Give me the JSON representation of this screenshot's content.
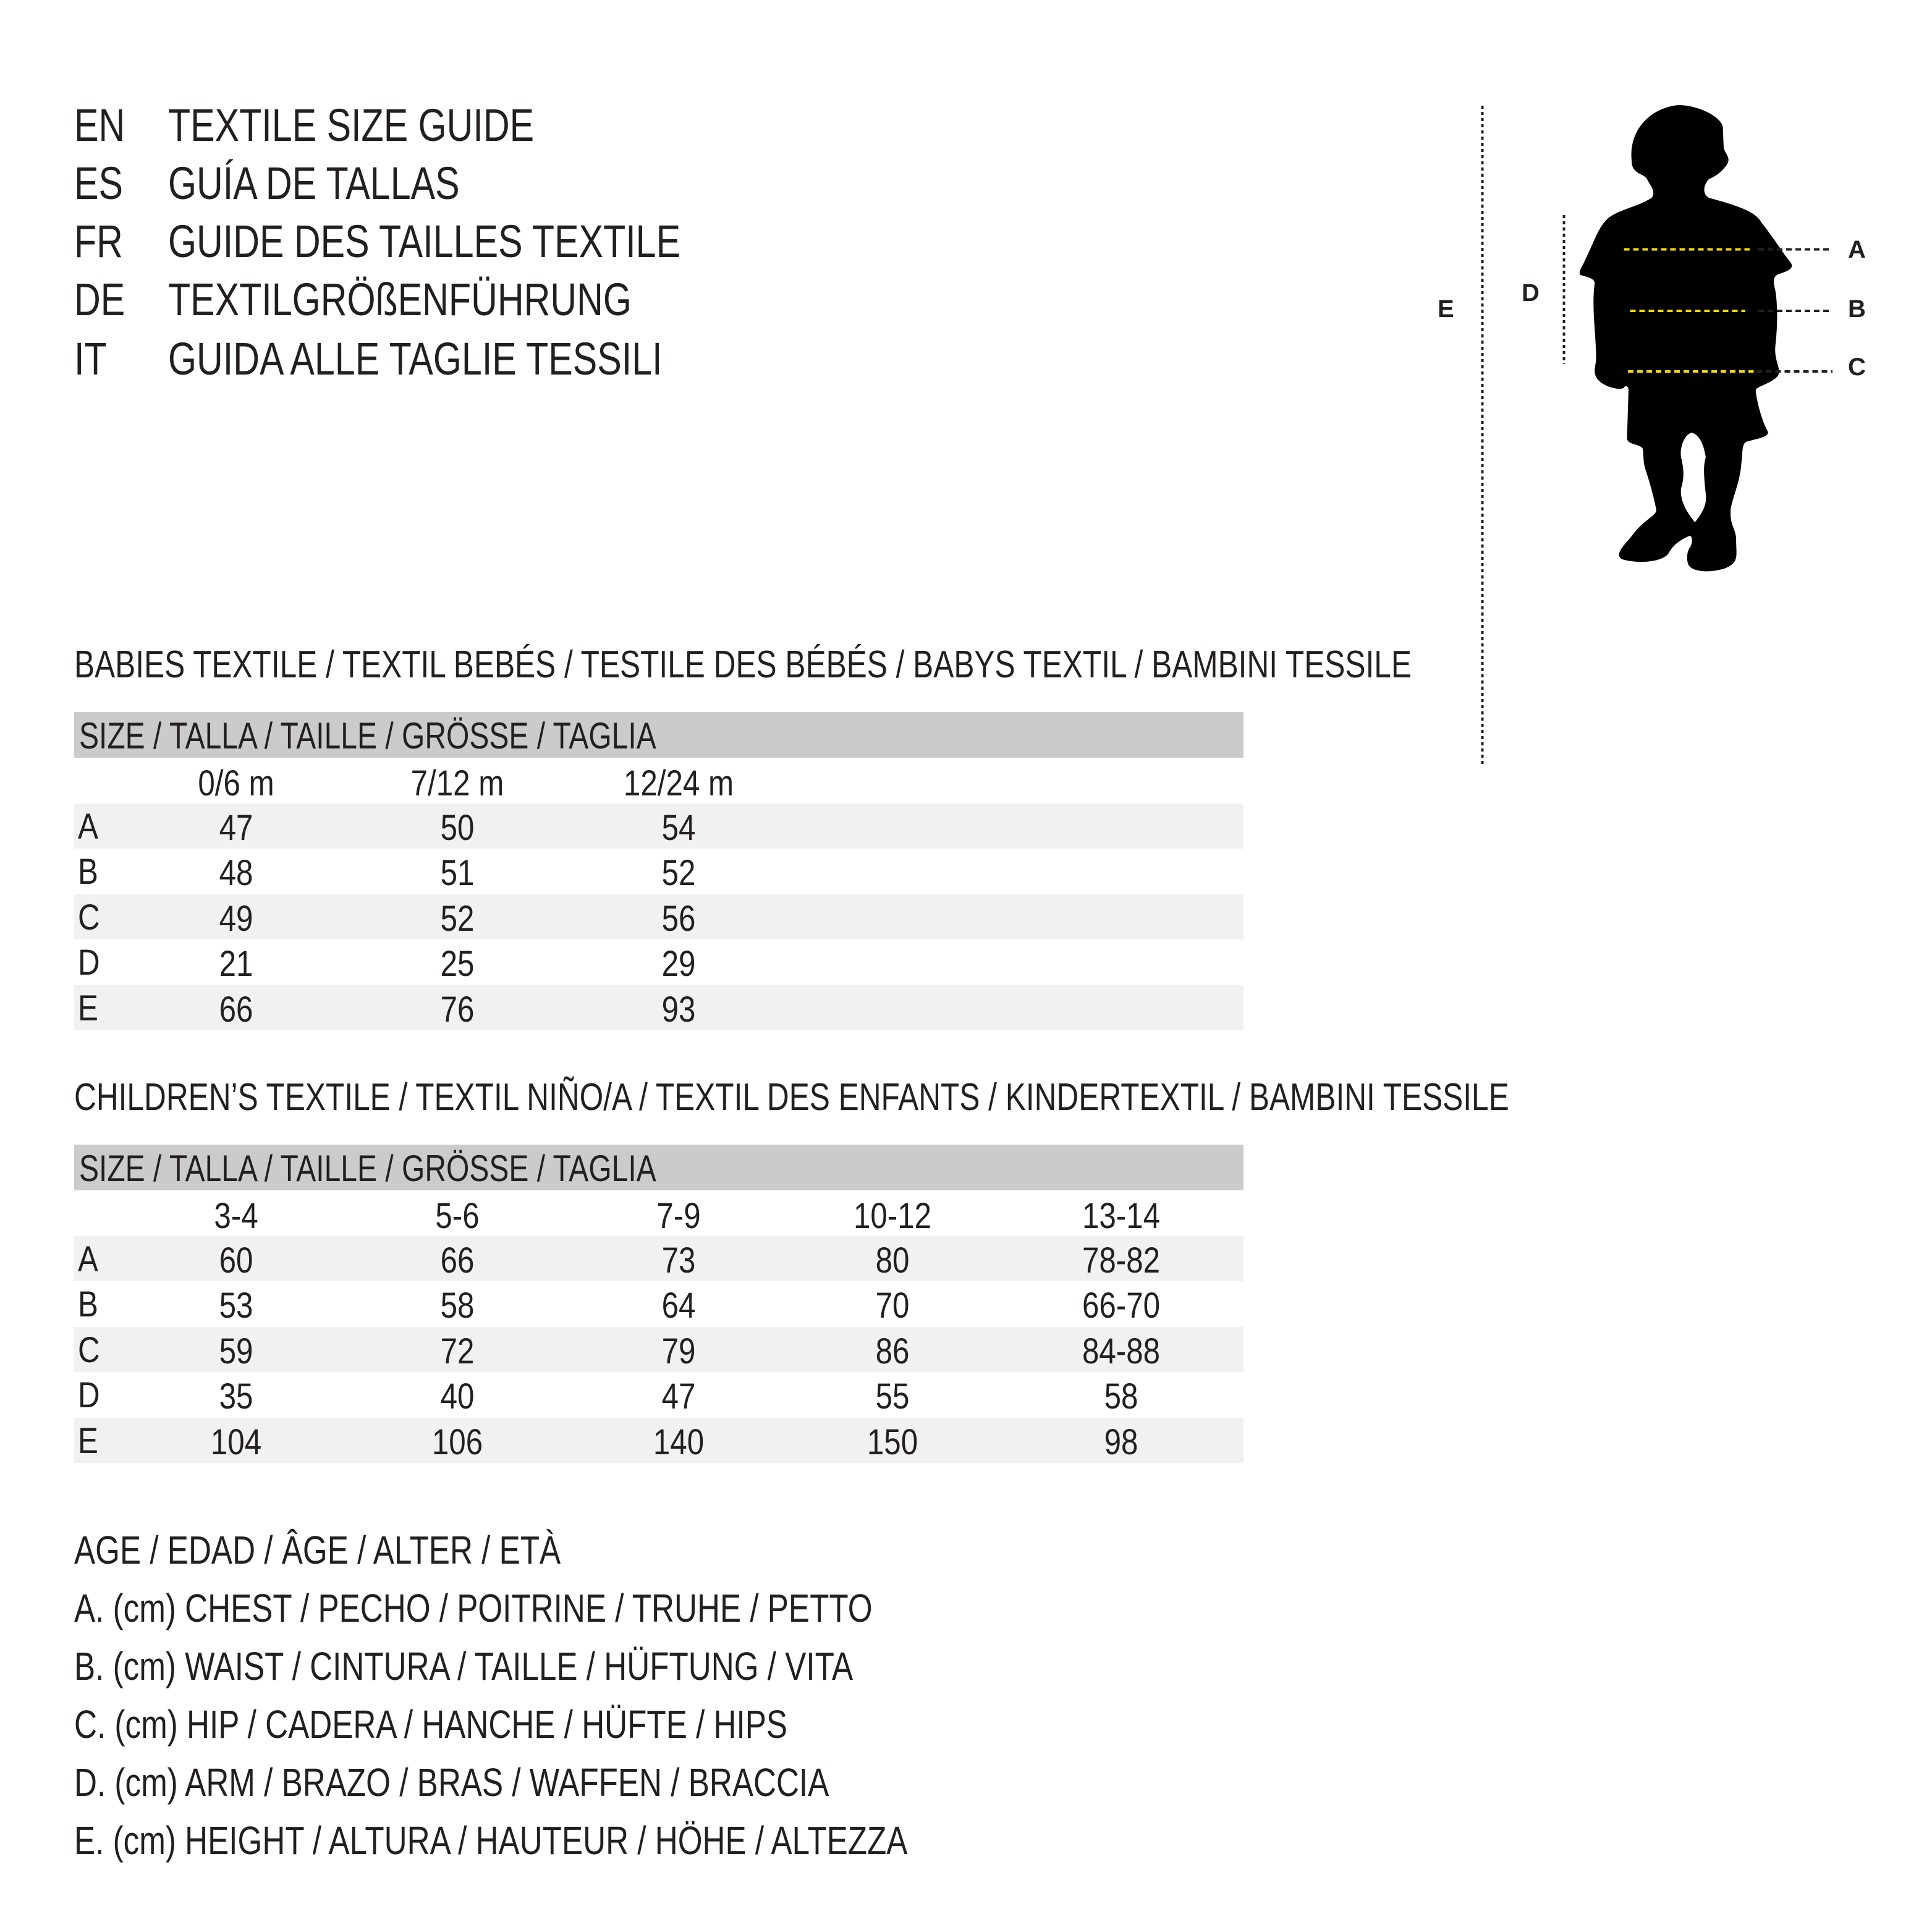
{
  "titles": [
    {
      "code": "EN",
      "text": "TEXTILE SIZE GUIDE"
    },
    {
      "code": "ES",
      "text": "GUÍA DE TALLAS"
    },
    {
      "code": "FR",
      "text": "GUIDE DES TAILLES TEXTILE"
    },
    {
      "code": "DE",
      "text": "TEXTILGRÖßENFÜHRUNG"
    },
    {
      "code": "IT",
      "text": "GUIDA ALLE TAGLIE TESSILI"
    }
  ],
  "figure": {
    "labels": {
      "A": "A",
      "B": "B",
      "C": "C",
      "D": "D",
      "E": "E"
    },
    "measure_line_color": "#f5d90a",
    "silhouette_color": "#000000"
  },
  "babies": {
    "heading": "BABIES TEXTILE / TEXTIL BEBÉS / TESTILE DES BÉBÉS / BABYS TEXTIL / BAMBINI TESSILE",
    "size_header": "SIZE / TALLA / TAILLE / GRÖSSE / TAGLIA",
    "sizes": [
      "0/6 m",
      "7/12 m",
      "12/24 m"
    ],
    "rows": [
      {
        "label": "A",
        "values": [
          "47",
          "50",
          "54"
        ]
      },
      {
        "label": "B",
        "values": [
          "48",
          "51",
          "52"
        ]
      },
      {
        "label": "C",
        "values": [
          "49",
          "52",
          "56"
        ]
      },
      {
        "label": "D",
        "values": [
          "21",
          "25",
          "29"
        ]
      },
      {
        "label": "E",
        "values": [
          "66",
          "76",
          "93"
        ]
      }
    ]
  },
  "children": {
    "heading": "CHILDREN’S TEXTILE / TEXTIL NIÑO/A / TEXTIL DES ENFANTS / KINDERTEXTIL / BAMBINI TESSILE",
    "size_header": "SIZE / TALLA / TAILLE / GRÖSSE / TAGLIA",
    "sizes": [
      "3-4",
      "5-6",
      "7-9",
      "10-12",
      "13-14"
    ],
    "rows": [
      {
        "label": "A",
        "values": [
          "60",
          "66",
          "73",
          "80",
          "78-82"
        ]
      },
      {
        "label": "B",
        "values": [
          "53",
          "58",
          "64",
          "70",
          "66-70"
        ]
      },
      {
        "label": "C",
        "values": [
          "59",
          "72",
          "79",
          "86",
          "84-88"
        ]
      },
      {
        "label": "D",
        "values": [
          "35",
          "40",
          "47",
          "55",
          "58"
        ]
      },
      {
        "label": "E",
        "values": [
          "104",
          "106",
          "140",
          "150",
          "98"
        ]
      }
    ]
  },
  "legend": [
    "AGE / EDAD / ÂGE / ALTER / ETÀ",
    "A. (cm) CHEST / PECHO / POITRINE / TRUHE / PETTO",
    "B. (cm) WAIST / CINTURA / TAILLE / HÜFTUNG / VITA",
    "C. (cm) HIP / CADERA / HANCHE / HÜFTE / HIPS",
    "D. (cm) ARM / BRAZO / BRAS / WAFFEN / BRACCIA",
    "E. (cm) HEIGHT / ALTURA / HAUTEUR / HÖHE / ALTEZZA"
  ]
}
